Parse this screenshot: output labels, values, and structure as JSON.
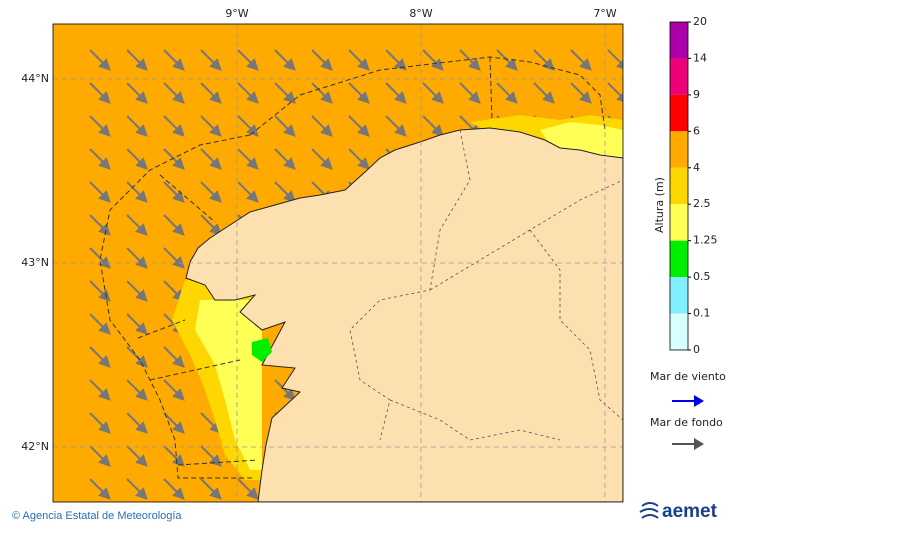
{
  "map": {
    "lon_labels": [
      "9°W",
      "8°W",
      "7°W"
    ],
    "lat_labels": [
      "44°N",
      "43°N",
      "42°N"
    ]
  },
  "colorbar": {
    "title": "Altura (m)",
    "labels": [
      "20",
      "14",
      "9",
      "6",
      "4",
      "2.5",
      "1.25",
      "0.5",
      "0.1",
      "0"
    ]
  },
  "legend": {
    "items": [
      {
        "label": "Mar de viento"
      },
      {
        "label": "Mar de fondo"
      }
    ]
  },
  "footer": {
    "credit": "© Agencia Estatal de Meteorología",
    "logo": "aemet"
  }
}
